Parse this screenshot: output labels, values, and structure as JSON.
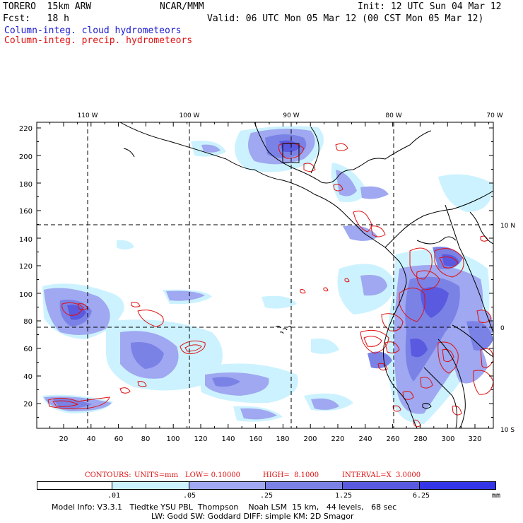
{
  "header": {
    "model": "TORERO  15km ARW",
    "org": "NCAR/MMM",
    "init": "Init: 12 UTC Sun 04 Mar 12",
    "fcst": "Fcst:   18 h",
    "valid": "Valid: 06 UTC Mon 05 Mar 12 (00 CST Mon 05 Mar 12)"
  },
  "legend": {
    "cloud": "Column-integ. cloud hydrometeors",
    "precip": "Column-integ. precip. hydrometeors"
  },
  "map": {
    "top_lon_labels": [
      "110 W",
      "100 W",
      "90 W",
      "80 W",
      "70 W"
    ],
    "right_lat_labels": [
      "10 N",
      "0",
      "10 S"
    ],
    "y_ticks": [
      "220",
      "200",
      "180",
      "160",
      "140",
      "120",
      "100",
      "80",
      "60",
      "40",
      "20"
    ],
    "x_ticks": [
      "20",
      "40",
      "60",
      "80",
      "100",
      "120",
      "140",
      "160",
      "180",
      "200",
      "220",
      "240",
      "260",
      "280",
      "300",
      "320"
    ],
    "colors": {
      "light": "#ccf2ff",
      "mid1": "#9fa8f0",
      "mid2": "#7b82e6",
      "dark": "#5a5ae0",
      "darker": "#3535e8",
      "precip_contour": "#e01010"
    }
  },
  "contours_line": {
    "contours": "CONTOURS:",
    "units": "UNITS=mm",
    "low": "LOW= 0.10000",
    "high": "HIGH=  8.1000",
    "interval": "INTERVAL=X  3.0000"
  },
  "colorbar": {
    "labels": [
      ".01",
      ".05",
      ".25",
      "1.25",
      "6.25"
    ],
    "unit": "mm",
    "colors": [
      "#ffffff",
      "#ccf2ff",
      "#9fa8f0",
      "#7b82e6",
      "#5a5ae0",
      "#3535e8"
    ]
  },
  "model_info": {
    "line1": "Model Info: V3.3.1   Tiedtke YSU PBL  Thompson    Noah LSM  15 km,   44 levels,   68 sec",
    "line2": "LW: Godd SW: Goddard DIFF: simple KM: 2D Smagor"
  }
}
